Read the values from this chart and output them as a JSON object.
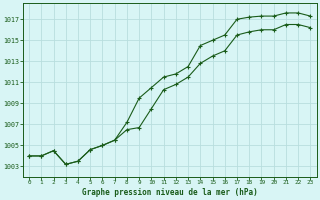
{
  "bg_color": "#d8f5f5",
  "grid_color": "#b8dede",
  "line_color": "#1a5c1a",
  "xlabel": "Graphe pression niveau de la mer (hPa)",
  "y_ticks": [
    1003,
    1005,
    1007,
    1009,
    1011,
    1013,
    1015,
    1017
  ],
  "ylim": [
    1002.0,
    1018.5
  ],
  "xlim": [
    -0.5,
    23.5
  ],
  "curveA_x": [
    0,
    1,
    2,
    3,
    4,
    5,
    6,
    7,
    8,
    9,
    10,
    11,
    12,
    13,
    14,
    15,
    16,
    17,
    18,
    19,
    20,
    21,
    22,
    23
  ],
  "curveA_y": [
    1004.0,
    1004.0,
    1004.5,
    1003.2,
    1003.5,
    1004.6,
    1005.0,
    1005.5,
    1007.2,
    1009.5,
    1010.5,
    1011.5,
    1011.8,
    1012.5,
    1014.5,
    1015.0,
    1015.5,
    1017.0,
    1017.2,
    1017.3,
    1017.3,
    1017.6,
    1017.6,
    1017.3
  ],
  "curveB_x": [
    0,
    1,
    2,
    3,
    4,
    5,
    6,
    7,
    8,
    9,
    10,
    11,
    12,
    13,
    14,
    15,
    16,
    17,
    18,
    19,
    20,
    21,
    22,
    23
  ],
  "curveB_y": [
    1004.0,
    1004.0,
    1004.5,
    1003.2,
    1003.5,
    1004.6,
    1005.0,
    1005.5,
    1006.5,
    1006.7,
    1008.5,
    1010.3,
    1010.8,
    1011.5,
    1012.8,
    1013.5,
    1014.0,
    1015.5,
    1015.8,
    1016.0,
    1016.0,
    1016.5,
    1016.5,
    1016.2
  ]
}
